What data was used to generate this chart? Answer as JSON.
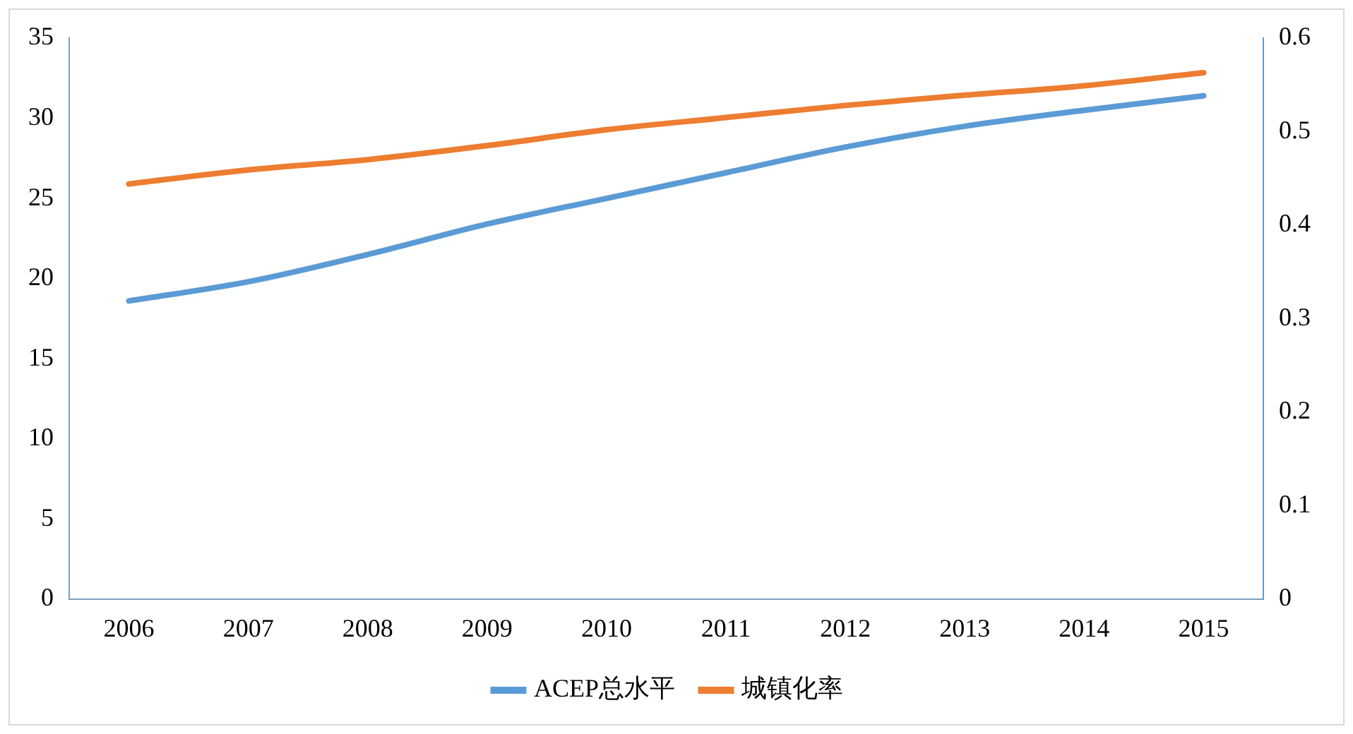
{
  "chart_data": {
    "type": "line",
    "categories": [
      "2006",
      "2007",
      "2008",
      "2009",
      "2010",
      "2011",
      "2012",
      "2013",
      "2014",
      "2015"
    ],
    "series": [
      {
        "name": "ACEP总水平",
        "color": "#5b9bd5",
        "values": [
          18.6,
          19.8,
          21.5,
          23.4,
          25.0,
          26.6,
          28.2,
          29.5,
          30.5,
          31.4
        ]
      },
      {
        "name": "城镇化率",
        "color": "#ed7d31",
        "axis": "y2",
        "values": [
          0.444,
          0.459,
          0.47,
          0.485,
          0.502,
          0.515,
          0.528,
          0.539,
          0.549,
          0.563
        ]
      }
    ],
    "ylim": [
      0,
      35
    ],
    "yticks": [
      0,
      5,
      10,
      15,
      20,
      25,
      30,
      35
    ],
    "y2lim": [
      0,
      0.6
    ],
    "y2ticks": [
      0,
      0.1,
      0.2,
      0.3,
      0.4,
      0.5,
      0.6
    ],
    "grid": false,
    "legend": "bottom",
    "marker": "none",
    "line_style": "solid"
  }
}
